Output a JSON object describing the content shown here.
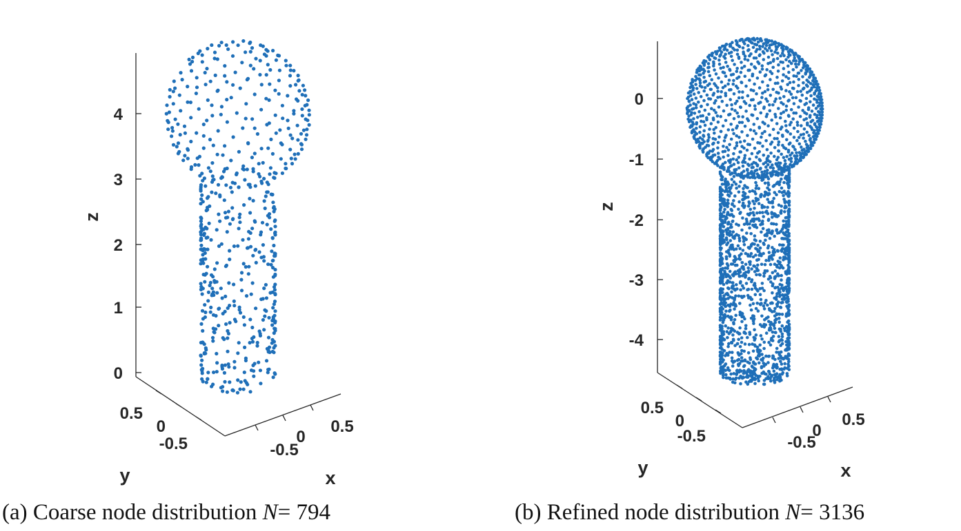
{
  "chart_data": [
    {
      "type": "scatter3d",
      "caption": {
        "tag": "(a)",
        "text": "Coarse node distribution",
        "var": "N",
        "eq": "=",
        "value": "794"
      },
      "node_count": 794,
      "marker_color": "#1f6fb8",
      "shape": "sphere on cylinder",
      "sphere": {
        "radius": 1,
        "center_z": 4
      },
      "cylinder": {
        "radius": 0.5,
        "z_range": [
          0,
          3
        ]
      },
      "axes": {
        "xlabel": "x",
        "ylabel": "y",
        "zlabel": "z",
        "xlim": [
          -0.5,
          0.5
        ],
        "ylim": [
          -0.5,
          0.5
        ],
        "zlim": [
          0,
          5
        ],
        "xticks": [
          "-0.5",
          "0",
          "0.5"
        ],
        "yticks": [
          "0.5",
          "0",
          "-0.5"
        ],
        "zticks": [
          "0",
          "1",
          "2",
          "3",
          "4"
        ]
      }
    },
    {
      "type": "scatter3d",
      "caption": {
        "tag": "(b)",
        "text": "Refined node distribution",
        "var": "N",
        "eq": "=",
        "value": "3136"
      },
      "node_count": 3136,
      "marker_color": "#1f6fb8",
      "shape": "sphere on cylinder",
      "sphere": {
        "radius": 1,
        "center_z": 0
      },
      "cylinder": {
        "radius": 0.5,
        "z_range": [
          -5,
          -1
        ]
      },
      "axes": {
        "xlabel": "x",
        "ylabel": "y",
        "zlabel": "z",
        "xlim": [
          -0.5,
          0.5
        ],
        "ylim": [
          -0.5,
          0.5
        ],
        "zlim": [
          -5,
          1
        ],
        "xticks": [
          "-0.5",
          "0",
          "0.5"
        ],
        "yticks": [
          "0.5",
          "0",
          "-0.5"
        ],
        "zticks": [
          "0",
          "-1",
          "-2",
          "-3",
          "-4"
        ]
      }
    }
  ]
}
